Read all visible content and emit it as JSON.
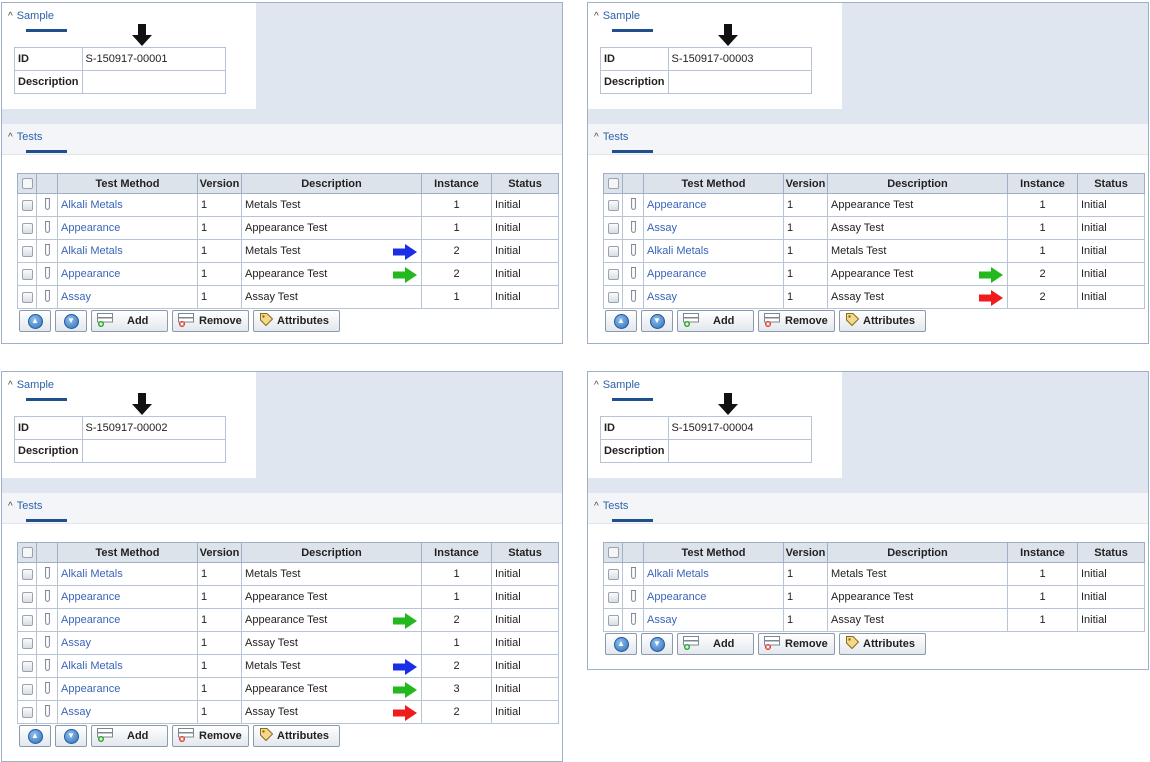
{
  "colors": {
    "marker_black": "#111111",
    "marker_blue": "#1a2ee8",
    "marker_green": "#22b81e",
    "marker_red": "#ee1c1c",
    "link": "#3a64b8",
    "panel_bg": "#dfe6ef"
  },
  "labels": {
    "sample_section": "Sample",
    "tests_section": "Tests",
    "id_label": "ID",
    "description_label": "Description",
    "columns": [
      "Test Method",
      "Version",
      "Description",
      "Instance",
      "Status"
    ],
    "add": "Add",
    "remove": "Remove",
    "attributes": "Attributes",
    "chevron": "^"
  },
  "panels": [
    {
      "sample_id": "S-150917-00001",
      "rows": [
        {
          "method": "Alkali Metals",
          "version": "1",
          "description": "Metals Test",
          "instance": "1",
          "status": "Initial",
          "marker": ""
        },
        {
          "method": "Appearance",
          "version": "1",
          "description": "Appearance Test",
          "instance": "1",
          "status": "Initial",
          "marker": ""
        },
        {
          "method": "Alkali Metals",
          "version": "1",
          "description": "Metals Test",
          "instance": "2",
          "status": "Initial",
          "marker": "blue"
        },
        {
          "method": "Appearance",
          "version": "1",
          "description": "Appearance Test",
          "instance": "2",
          "status": "Initial",
          "marker": "green"
        },
        {
          "method": "Assay",
          "version": "1",
          "description": "Assay Test",
          "instance": "1",
          "status": "Initial",
          "marker": ""
        }
      ]
    },
    {
      "sample_id": "S-150917-00003",
      "rows": [
        {
          "method": "Appearance",
          "version": "1",
          "description": "Appearance Test",
          "instance": "1",
          "status": "Initial",
          "marker": ""
        },
        {
          "method": "Assay",
          "version": "1",
          "description": "Assay Test",
          "instance": "1",
          "status": "Initial",
          "marker": ""
        },
        {
          "method": "Alkali Metals",
          "version": "1",
          "description": "Metals Test",
          "instance": "1",
          "status": "Initial",
          "marker": ""
        },
        {
          "method": "Appearance",
          "version": "1",
          "description": "Appearance Test",
          "instance": "2",
          "status": "Initial",
          "marker": "green"
        },
        {
          "method": "Assay",
          "version": "1",
          "description": "Assay Test",
          "instance": "2",
          "status": "Initial",
          "marker": "red"
        }
      ]
    },
    {
      "sample_id": "S-150917-00002",
      "rows": [
        {
          "method": "Alkali Metals",
          "version": "1",
          "description": "Metals Test",
          "instance": "1",
          "status": "Initial",
          "marker": ""
        },
        {
          "method": "Appearance",
          "version": "1",
          "description": "Appearance Test",
          "instance": "1",
          "status": "Initial",
          "marker": ""
        },
        {
          "method": "Appearance",
          "version": "1",
          "description": "Appearance Test",
          "instance": "2",
          "status": "Initial",
          "marker": "green"
        },
        {
          "method": "Assay",
          "version": "1",
          "description": "Assay Test",
          "instance": "1",
          "status": "Initial",
          "marker": ""
        },
        {
          "method": "Alkali Metals",
          "version": "1",
          "description": "Metals Test",
          "instance": "2",
          "status": "Initial",
          "marker": "blue"
        },
        {
          "method": "Appearance",
          "version": "1",
          "description": "Appearance Test",
          "instance": "3",
          "status": "Initial",
          "marker": "green"
        },
        {
          "method": "Assay",
          "version": "1",
          "description": "Assay Test",
          "instance": "2",
          "status": "Initial",
          "marker": "red"
        }
      ]
    },
    {
      "sample_id": "S-150917-00004",
      "rows": [
        {
          "method": "Alkali Metals",
          "version": "1",
          "description": "Metals Test",
          "instance": "1",
          "status": "Initial",
          "marker": ""
        },
        {
          "method": "Appearance",
          "version": "1",
          "description": "Appearance Test",
          "instance": "1",
          "status": "Initial",
          "marker": ""
        },
        {
          "method": "Assay",
          "version": "1",
          "description": "Assay Test",
          "instance": "1",
          "status": "Initial",
          "marker": ""
        }
      ]
    }
  ]
}
